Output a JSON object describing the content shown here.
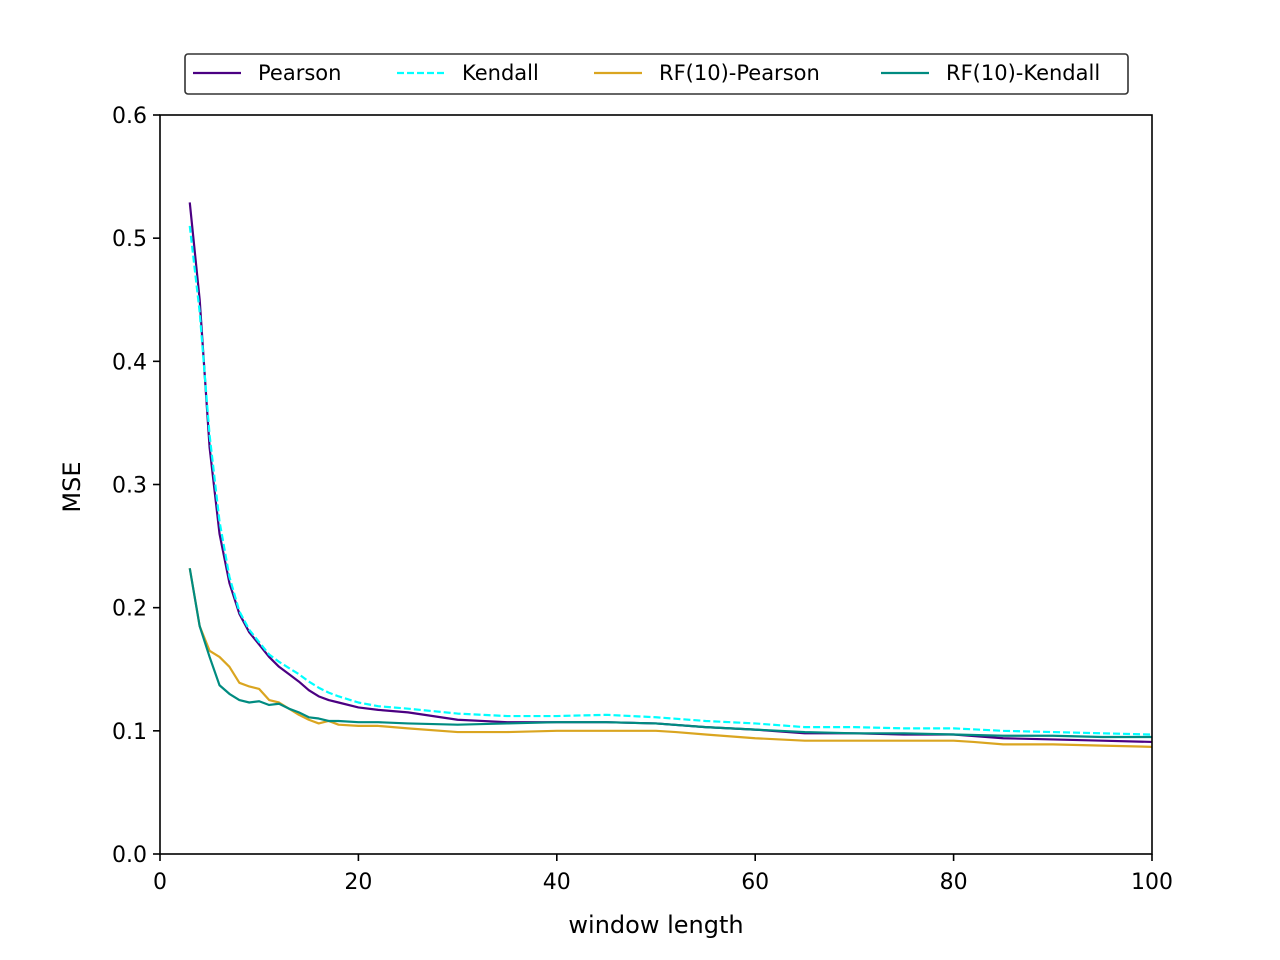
{
  "chart_data": {
    "type": "line",
    "title": "",
    "xlabel": "window length",
    "ylabel": "MSE",
    "xlim": [
      0,
      100
    ],
    "ylim": [
      0.0,
      0.6
    ],
    "xticks": [
      0,
      20,
      40,
      60,
      80,
      100
    ],
    "xtick_labels": [
      "0",
      "20",
      "40",
      "60",
      "80",
      "100"
    ],
    "yticks": [
      0.0,
      0.1,
      0.2,
      0.3,
      0.4,
      0.5,
      0.6
    ],
    "ytick_labels": [
      "0.0",
      "0.1",
      "0.2",
      "0.3",
      "0.4",
      "0.5",
      "0.6"
    ],
    "grid": false,
    "legend_position": "top-center",
    "legend_columns": 4,
    "series": [
      {
        "name": "Pearson",
        "color": "#4b0082",
        "dash": "solid",
        "x": [
          3,
          4,
          5,
          6,
          7,
          8,
          9,
          10,
          11,
          12,
          13,
          14,
          15,
          16,
          17,
          18,
          20,
          22,
          25,
          30,
          35,
          40,
          45,
          50,
          55,
          60,
          65,
          70,
          75,
          80,
          85,
          90,
          95,
          100
        ],
        "y": [
          0.529,
          0.45,
          0.33,
          0.26,
          0.22,
          0.195,
          0.18,
          0.17,
          0.16,
          0.152,
          0.146,
          0.14,
          0.133,
          0.128,
          0.125,
          0.123,
          0.119,
          0.117,
          0.115,
          0.109,
          0.107,
          0.107,
          0.107,
          0.106,
          0.103,
          0.101,
          0.098,
          0.098,
          0.097,
          0.097,
          0.094,
          0.093,
          0.092,
          0.091
        ]
      },
      {
        "name": "Kendall",
        "color": "#00ffff",
        "dash": "dashed",
        "x": [
          3,
          4,
          5,
          6,
          7,
          8,
          9,
          10,
          11,
          12,
          13,
          14,
          15,
          16,
          17,
          18,
          20,
          22,
          25,
          30,
          35,
          40,
          45,
          50,
          55,
          60,
          65,
          70,
          75,
          80,
          85,
          90,
          95,
          100
        ],
        "y": [
          0.51,
          0.44,
          0.34,
          0.27,
          0.225,
          0.197,
          0.182,
          0.172,
          0.162,
          0.156,
          0.151,
          0.146,
          0.14,
          0.135,
          0.131,
          0.128,
          0.123,
          0.12,
          0.118,
          0.114,
          0.112,
          0.112,
          0.113,
          0.111,
          0.108,
          0.106,
          0.103,
          0.103,
          0.102,
          0.102,
          0.1,
          0.099,
          0.098,
          0.097
        ]
      },
      {
        "name": "RF(10)-Pearson",
        "color": "#daa520",
        "dash": "solid",
        "x": [
          3,
          4,
          5,
          6,
          7,
          8,
          9,
          10,
          11,
          12,
          13,
          14,
          15,
          16,
          17,
          18,
          20,
          22,
          25,
          30,
          35,
          40,
          45,
          50,
          52,
          55,
          60,
          65,
          70,
          75,
          80,
          82,
          85,
          90,
          95,
          100
        ],
        "y": [
          0.232,
          0.185,
          0.165,
          0.16,
          0.152,
          0.139,
          0.136,
          0.134,
          0.125,
          0.123,
          0.118,
          0.113,
          0.109,
          0.106,
          0.108,
          0.105,
          0.104,
          0.104,
          0.102,
          0.099,
          0.099,
          0.1,
          0.1,
          0.1,
          0.099,
          0.097,
          0.094,
          0.092,
          0.092,
          0.092,
          0.092,
          0.091,
          0.089,
          0.089,
          0.088,
          0.087
        ]
      },
      {
        "name": "RF(10)-Kendall",
        "color": "#008b80",
        "dash": "solid",
        "x": [
          3,
          4,
          5,
          6,
          7,
          8,
          9,
          10,
          11,
          12,
          13,
          14,
          15,
          16,
          17,
          18,
          20,
          22,
          25,
          30,
          35,
          40,
          45,
          50,
          55,
          60,
          65,
          70,
          75,
          80,
          85,
          90,
          95,
          100
        ],
        "y": [
          0.232,
          0.185,
          0.16,
          0.137,
          0.13,
          0.125,
          0.123,
          0.124,
          0.121,
          0.122,
          0.118,
          0.115,
          0.111,
          0.11,
          0.108,
          0.108,
          0.107,
          0.107,
          0.106,
          0.105,
          0.106,
          0.107,
          0.107,
          0.106,
          0.103,
          0.101,
          0.099,
          0.098,
          0.098,
          0.097,
          0.096,
          0.096,
          0.095,
          0.095
        ]
      }
    ]
  }
}
